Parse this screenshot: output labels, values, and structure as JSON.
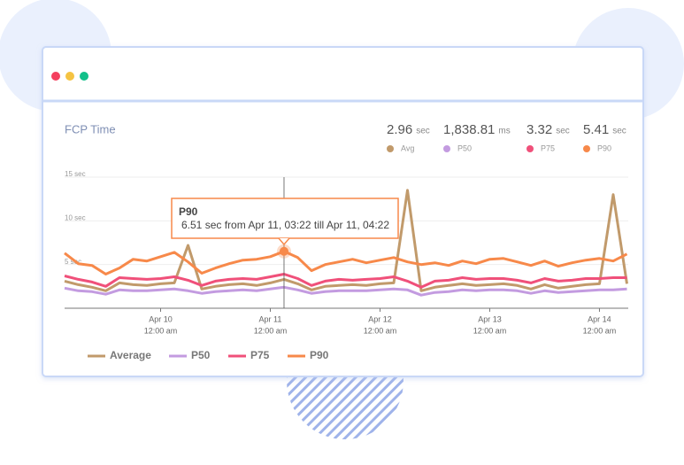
{
  "chart_data": {
    "type": "line",
    "title": "FCP Time",
    "stats": [
      {
        "value": "2.96",
        "unit": "sec",
        "label": "Avg"
      },
      {
        "value": "1,838.81",
        "unit": "ms",
        "label": "P50"
      },
      {
        "value": "3.32",
        "unit": "sec",
        "label": "P75"
      },
      {
        "value": "5.41",
        "unit": "sec",
        "label": "P90"
      }
    ],
    "x": [
      -21,
      -18,
      -15,
      -12,
      -9,
      -6,
      -3,
      0,
      3,
      6,
      9,
      12,
      15,
      18,
      21,
      24,
      27,
      30,
      33,
      36,
      39,
      42,
      45,
      48,
      51,
      54,
      57,
      60,
      63,
      66,
      69,
      72,
      75,
      78,
      81,
      84,
      87,
      90,
      93,
      96,
      99,
      102
    ],
    "xlim": [
      -21,
      102.3
    ],
    "xticks": [
      {
        "value": 0,
        "label": "Apr 10",
        "time": "12:00 am"
      },
      {
        "value": 24,
        "label": "Apr 11",
        "time": "12:00 am"
      },
      {
        "value": 48,
        "label": "Apr 12",
        "time": "12:00 am"
      },
      {
        "value": 72,
        "label": "Apr 13",
        "time": "12:00 am"
      },
      {
        "value": 96,
        "label": "Apr 14",
        "time": "12:00 am"
      }
    ],
    "ylim": [
      0,
      15
    ],
    "yticks": [
      {
        "value": 5,
        "label": "5 sec"
      },
      {
        "value": 10,
        "label": "10 sec"
      },
      {
        "value": 15,
        "label": "15 sec"
      }
    ],
    "grid": true,
    "series": [
      {
        "name": "Average",
        "color": "#c19a6b",
        "values": [
          3.1,
          2.7,
          2.4,
          2.0,
          2.9,
          2.7,
          2.6,
          2.8,
          2.9,
          7.2,
          2.2,
          2.5,
          2.7,
          2.8,
          2.6,
          2.9,
          3.3,
          2.8,
          2.1,
          2.5,
          2.6,
          2.7,
          2.6,
          2.8,
          2.9,
          13.5,
          2.0,
          2.4,
          2.6,
          2.8,
          2.6,
          2.7,
          2.8,
          2.6,
          2.2,
          2.7,
          2.3,
          2.5,
          2.7,
          2.8,
          13.0,
          2.8
        ]
      },
      {
        "name": "P50",
        "color": "#c39be0",
        "values": [
          2.3,
          2.0,
          1.9,
          1.6,
          2.1,
          2.0,
          2.0,
          2.1,
          2.2,
          2.0,
          1.7,
          1.9,
          2.0,
          2.1,
          2.0,
          2.2,
          2.4,
          2.1,
          1.7,
          1.9,
          2.0,
          2.0,
          2.0,
          2.1,
          2.2,
          2.1,
          1.5,
          1.8,
          1.9,
          2.1,
          2.0,
          2.1,
          2.1,
          2.0,
          1.7,
          2.0,
          1.8,
          1.9,
          2.0,
          2.1,
          2.1,
          2.2
        ]
      },
      {
        "name": "P75",
        "color": "#f0507a",
        "values": [
          3.7,
          3.3,
          3.0,
          2.5,
          3.5,
          3.4,
          3.3,
          3.4,
          3.6,
          3.2,
          2.6,
          3.1,
          3.3,
          3.4,
          3.3,
          3.6,
          3.9,
          3.4,
          2.6,
          3.1,
          3.3,
          3.2,
          3.3,
          3.4,
          3.6,
          3.1,
          2.4,
          3.1,
          3.2,
          3.5,
          3.3,
          3.4,
          3.4,
          3.2,
          2.9,
          3.4,
          3.1,
          3.2,
          3.4,
          3.4,
          3.5,
          3.5
        ]
      },
      {
        "name": "P90",
        "color": "#f7894a",
        "values": [
          6.3,
          5.1,
          4.9,
          3.9,
          4.6,
          5.6,
          5.4,
          5.9,
          6.4,
          5.3,
          4.0,
          4.6,
          5.1,
          5.5,
          5.6,
          5.9,
          6.51,
          5.8,
          4.3,
          5.0,
          5.3,
          5.6,
          5.2,
          5.5,
          5.8,
          5.3,
          5.0,
          5.2,
          4.9,
          5.4,
          5.1,
          5.6,
          5.7,
          5.3,
          4.9,
          5.4,
          4.8,
          5.2,
          5.5,
          5.7,
          5.4,
          6.2
        ]
      }
    ],
    "tooltip": {
      "series": 3,
      "index": 16,
      "title": "P90",
      "text": "6.51 sec from Apr 11, 03:22 till Apr 11, 04:22"
    }
  }
}
